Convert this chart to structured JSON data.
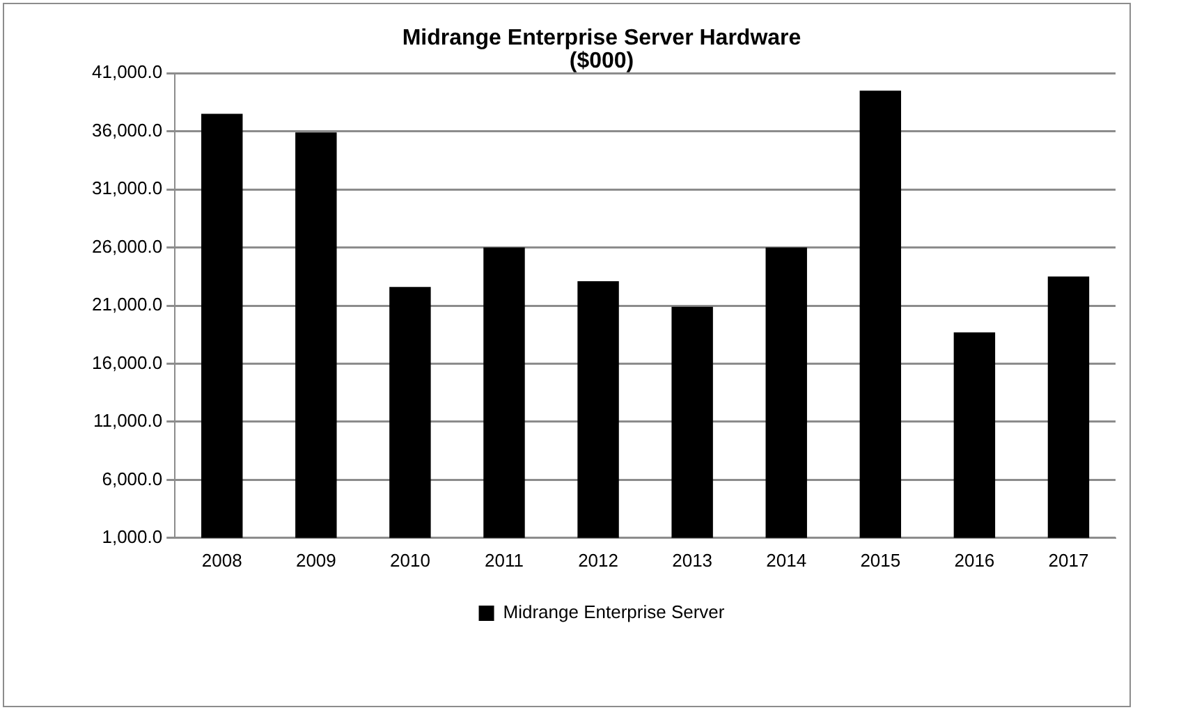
{
  "chart_data": {
    "type": "bar",
    "title": "Midrange Enterprise Server Hardware\n($000)",
    "categories": [
      "2008",
      "2009",
      "2010",
      "2011",
      "2012",
      "2013",
      "2014",
      "2015",
      "2016",
      "2017"
    ],
    "series": [
      {
        "name": "Midrange Enterprise Server",
        "color": "#000000",
        "values": [
          37500,
          35900,
          22600,
          26000,
          23100,
          20900,
          26000,
          39500,
          18700,
          23500
        ]
      }
    ],
    "ylim": [
      1000,
      41000
    ],
    "yticks": [
      {
        "value": 1000,
        "label": "1,000.0"
      },
      {
        "value": 6000,
        "label": "6,000.0"
      },
      {
        "value": 11000,
        "label": "11,000.0"
      },
      {
        "value": 16000,
        "label": "16,000.0"
      },
      {
        "value": 21000,
        "label": "21,000.0"
      },
      {
        "value": 26000,
        "label": "26,000.0"
      },
      {
        "value": 31000,
        "label": "31,000.0"
      },
      {
        "value": 36000,
        "label": "36,000.0"
      },
      {
        "value": 41000,
        "label": "41,000.0"
      }
    ],
    "grid": "y",
    "legend": "bottom"
  }
}
